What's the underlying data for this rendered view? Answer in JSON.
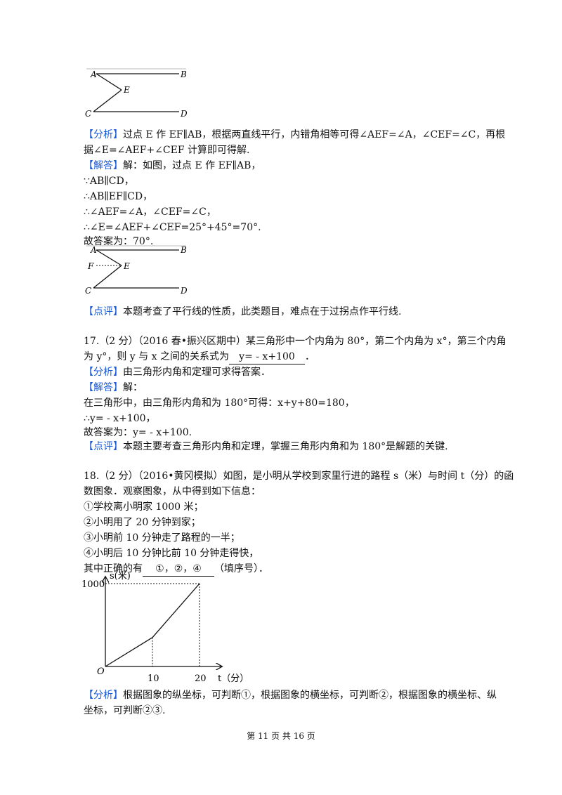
{
  "figure1": {
    "labels": {
      "A": "A",
      "B": "B",
      "C": "C",
      "D": "D",
      "E": "E"
    }
  },
  "figure2": {
    "labels": {
      "A": "A",
      "B": "B",
      "C": "C",
      "D": "D",
      "E": "E",
      "F": "F"
    }
  },
  "q16": {
    "analysis_tag": "【分析】",
    "analysis_l1": "过点 E 作 EF∥AB，根据两直线平行，内错角相等可得∠AEF=∠A，∠CEF=∠C，再根",
    "analysis_l2": "据∠E=∠AEF+∠CEF 计算即可得解.",
    "solution_tag": "【解答】",
    "solution_l1": "解：如图，过点 E 作 EF∥AB，",
    "steps": [
      "∵AB∥CD，",
      "∴AB∥EF∥CD，",
      "∴∠AEF=∠A，∠CEF=∠C，",
      "∴∠E=∠AEF+∠CEF=25°+45°=70°.",
      "故答案为：70°."
    ],
    "comment_tag": "【点评】",
    "comment": "本题考查了平行线的性质，此类题目，难点在于过拐点作平行线."
  },
  "q17": {
    "stem_l1": "17.（2 分）（2016 春•振兴区期中）某三角形中一个内角为 80°，第二个内角为 x°，第三个内角",
    "stem_l2a": "为 y°，则 y 与 x 之间的关系式为",
    "answer": "y= - x+100",
    "stem_l2b": "．",
    "analysis_tag": "【分析】",
    "analysis": "由三角形内角和定理可求得答案．",
    "solution_tag": "【解答】",
    "solution": "解：",
    "steps": [
      "在三角形中，由三角形内角和为 180°可得：x+y+80=180，",
      "∴y= - x+100，",
      "故答案为：y= - x+100."
    ],
    "comment_tag": "【点评】",
    "comment": "本题主要考查三角形内角和定理，掌握三角形内角和为 180°是解题的关键."
  },
  "q18": {
    "stem_l1": "18.（2 分）（2016•黄冈模拟）如图，是小明从学校到家里行进的路程 s（米）与时间 t（分）的函",
    "stem_l2": "数图象．观察图象，从中得到如下信息：",
    "items": [
      "①学校离小明家 1000 米；",
      "②小明用了 20 分钟到家；",
      "③小明前 10 分钟走了路程的一半；",
      "④小明后 10 分钟比前 10 分钟走得快，"
    ],
    "fill_prefix": "其中正确的有",
    "answer": "①，②，④",
    "fill_suffix": "（填序号）．",
    "analysis_tag": "【分析】",
    "analysis_l1": "根据图象的纵坐标，可判断①，根据图象的横坐标，可判断②，根据图象的横坐标、纵",
    "analysis_l2": "坐标，可判断②③."
  },
  "chart_data": {
    "type": "line",
    "xlabel": "t（分）",
    "ylabel": "s(米)",
    "origin_label": "O",
    "x_ticks": [
      "10",
      "20"
    ],
    "y_ticks": [
      "1000"
    ],
    "xlim": [
      0,
      24
    ],
    "ylim": [
      0,
      1150
    ],
    "series": [
      {
        "x": [
          0,
          10,
          20
        ],
        "y": [
          0,
          350,
          1000
        ]
      }
    ]
  },
  "footer": "第 11 页 共 16 页"
}
